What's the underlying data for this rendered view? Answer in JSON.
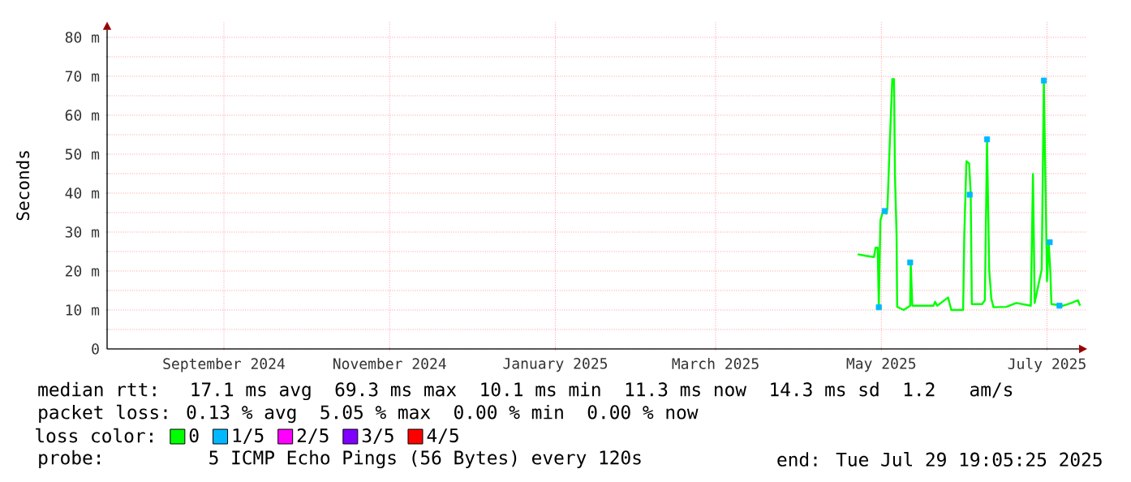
{
  "chart_data": {
    "type": "line",
    "ylabel": "Seconds",
    "xlim": [
      "2024-08-03",
      "2025-07-29T19:05"
    ],
    "xticks": [
      {
        "value": "2024-09-15",
        "label": "September 2024"
      },
      {
        "value": "2024-11-15",
        "label": "November 2024"
      },
      {
        "value": "2025-01-15",
        "label": "January 2025"
      },
      {
        "value": "2025-03-15",
        "label": "March 2025"
      },
      {
        "value": "2025-05-15",
        "label": "May 2025"
      },
      {
        "value": "2025-07-15",
        "label": "July 2025"
      }
    ],
    "ylim": [
      0,
      84
    ],
    "yticks": [
      0,
      {
        "value": 5,
        "label": null
      },
      {
        "value": 10,
        "label": "10 m"
      },
      {
        "value": 15,
        "label": null
      },
      {
        "value": 20,
        "label": "20 m"
      },
      {
        "value": 25,
        "label": null
      },
      {
        "value": 30,
        "label": "30 m"
      },
      {
        "value": 35,
        "label": null
      },
      {
        "value": 40,
        "label": "40 m"
      },
      {
        "value": 45,
        "label": null
      },
      {
        "value": 50,
        "label": "50 m"
      },
      {
        "value": 55,
        "label": null
      },
      {
        "value": 60,
        "label": "60 m"
      },
      {
        "value": 65,
        "label": null
      },
      {
        "value": 70,
        "label": "70 m"
      },
      {
        "value": 75,
        "label": null
      },
      {
        "value": 80,
        "label": "80 m"
      }
    ],
    "grid": true,
    "legend": "bottom",
    "legend_title": "loss color:",
    "series": [
      {
        "name": "0",
        "color": "#00ff00",
        "x": [
          "2025-05-06T07:00",
          "2025-05-09T07:00",
          "2025-05-12T07:00",
          "2025-05-12T21:00",
          "2025-05-13T16:00",
          "2025-05-14T02:00",
          "2025-05-14T16:00",
          "2025-05-15T16:00",
          "2025-05-16T21:00",
          "2025-05-17T06:00",
          "2025-05-18T01:00",
          "2025-05-19T01:00",
          "2025-05-19T16:00",
          "2025-05-20T01:00",
          "2025-05-20T15:00",
          "2025-05-20T20:00",
          "2025-05-23T06:00",
          "2025-05-25T15:00",
          "2025-05-25T20:00",
          "2025-05-26T10:00",
          "2025-06-03T05:00",
          "2025-06-03T19:00",
          "2025-06-04T14:00",
          "2025-06-08T14:00",
          "2025-06-09T18:00",
          "2025-06-14T03:00",
          "2025-06-14T13:00",
          "2025-06-15T08:00",
          "2025-06-16T08:00",
          "2025-06-16T22:00",
          "2025-06-17T08:00",
          "2025-06-21T03:00",
          "2025-06-22T03:00",
          "2025-06-22T22:00",
          "2025-06-23T17:00",
          "2025-06-24T12:00",
          "2025-06-25T07:00",
          "2025-06-30T02:00",
          "2025-07-03T16:00",
          "2025-07-09T01:00",
          "2025-07-09T20:00",
          "2025-07-10T11:00",
          "2025-07-13T01:00",
          "2025-07-13T20:00",
          "2025-07-15T00:00",
          "2025-07-15T15:00",
          "2025-07-16T05:00",
          "2025-07-16T15:00",
          "2025-07-21T00:00",
          "2025-07-24T00:00",
          "2025-07-26T09:00",
          "2025-07-27T04:00"
        ],
        "values": [
          24.3,
          23.9,
          23.6,
          26.0,
          26.0,
          10.7,
          33.0,
          35.4,
          34.7,
          36.1,
          51.4,
          69.3,
          69.3,
          44.2,
          29.2,
          10.8,
          10.0,
          11.1,
          22.2,
          11.1,
          11.1,
          12.1,
          11.1,
          13.2,
          10.0,
          10.0,
          29.2,
          48.2,
          47.6,
          39.6,
          11.5,
          11.5,
          12.5,
          53.8,
          20.4,
          12.9,
          10.7,
          10.8,
          11.8,
          11.1,
          44.9,
          11.8,
          20.4,
          68.9,
          17.4,
          27.4,
          20.0,
          11.5,
          11.1,
          11.8,
          12.5,
          11.1
        ]
      },
      {
        "name": "1/5",
        "color": "#00b8ff",
        "type": "scatter",
        "marker": "square",
        "x": [
          "2025-05-14T02:00",
          "2025-05-16T06:00",
          "2025-05-25T15:00",
          "2025-06-16T13:00",
          "2025-06-22T22:00",
          "2025-07-13T20:00",
          "2025-07-16T00:00",
          "2025-07-19T14:00"
        ],
        "values": [
          10.7,
          35.4,
          22.2,
          39.6,
          53.8,
          68.9,
          27.4,
          11.1
        ]
      },
      {
        "name": "2/5",
        "color": "#ff00ff"
      },
      {
        "name": "3/5",
        "color": "#7f00ff"
      },
      {
        "name": "4/5",
        "color": "#ff0000"
      }
    ],
    "annotations": [
      "median rtt:  17.1 ms avg  69.3 ms max  10.1 ms min  11.3 ms now  14.3 ms sd  1.2   am/s",
      "packet loss: 0.13 % avg  5.05 % max  0.00 % min  0.00 % now",
      "probe:       5 ICMP Echo Pings (56 Bytes) every 120s",
      "end: Tue Jul 29 19:05:25 2025"
    ]
  }
}
